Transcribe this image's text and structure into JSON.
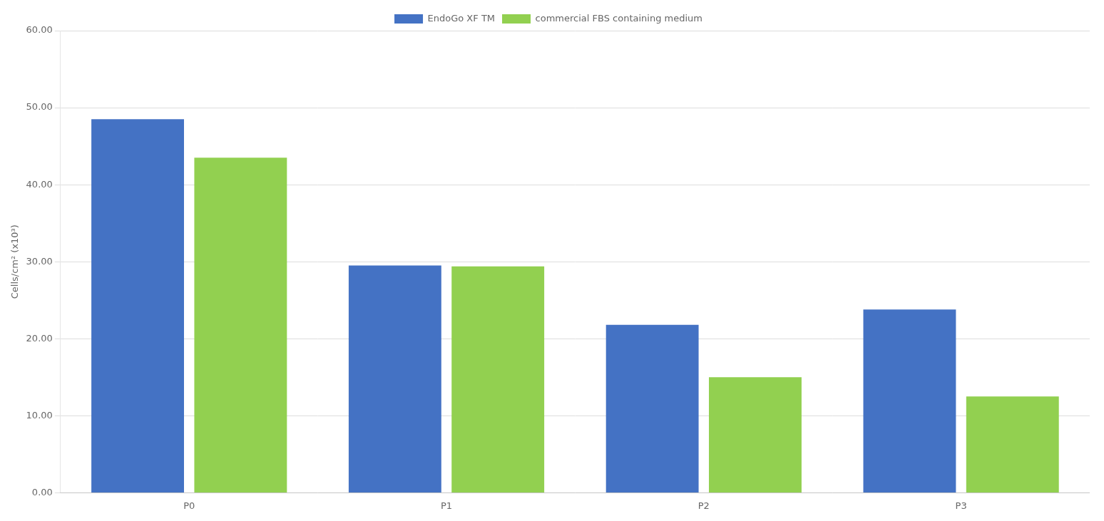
{
  "chart_data": {
    "type": "bar",
    "categories": [
      "P0",
      "P1",
      "P2",
      "P3"
    ],
    "series": [
      {
        "name": "EndoGo XF TM",
        "color": "#4472C4",
        "values": [
          48.5,
          29.5,
          21.8,
          23.8
        ]
      },
      {
        "name": "commercial FBS containing medium",
        "color": "#92D050",
        "values": [
          43.5,
          29.4,
          15.0,
          12.5
        ]
      }
    ],
    "ylabel": "Cells/cm² (x10³)",
    "ylim": [
      0,
      60
    ],
    "yticks": [
      {
        "value": 0,
        "label": "0.00"
      },
      {
        "value": 10,
        "label": "10.00"
      },
      {
        "value": 20,
        "label": "20.00"
      },
      {
        "value": 30,
        "label": "30.00"
      },
      {
        "value": 40,
        "label": "40.00"
      },
      {
        "value": 50,
        "label": "50.00"
      },
      {
        "value": 60,
        "label": "60.00"
      }
    ],
    "grid": true,
    "legend": "top"
  }
}
